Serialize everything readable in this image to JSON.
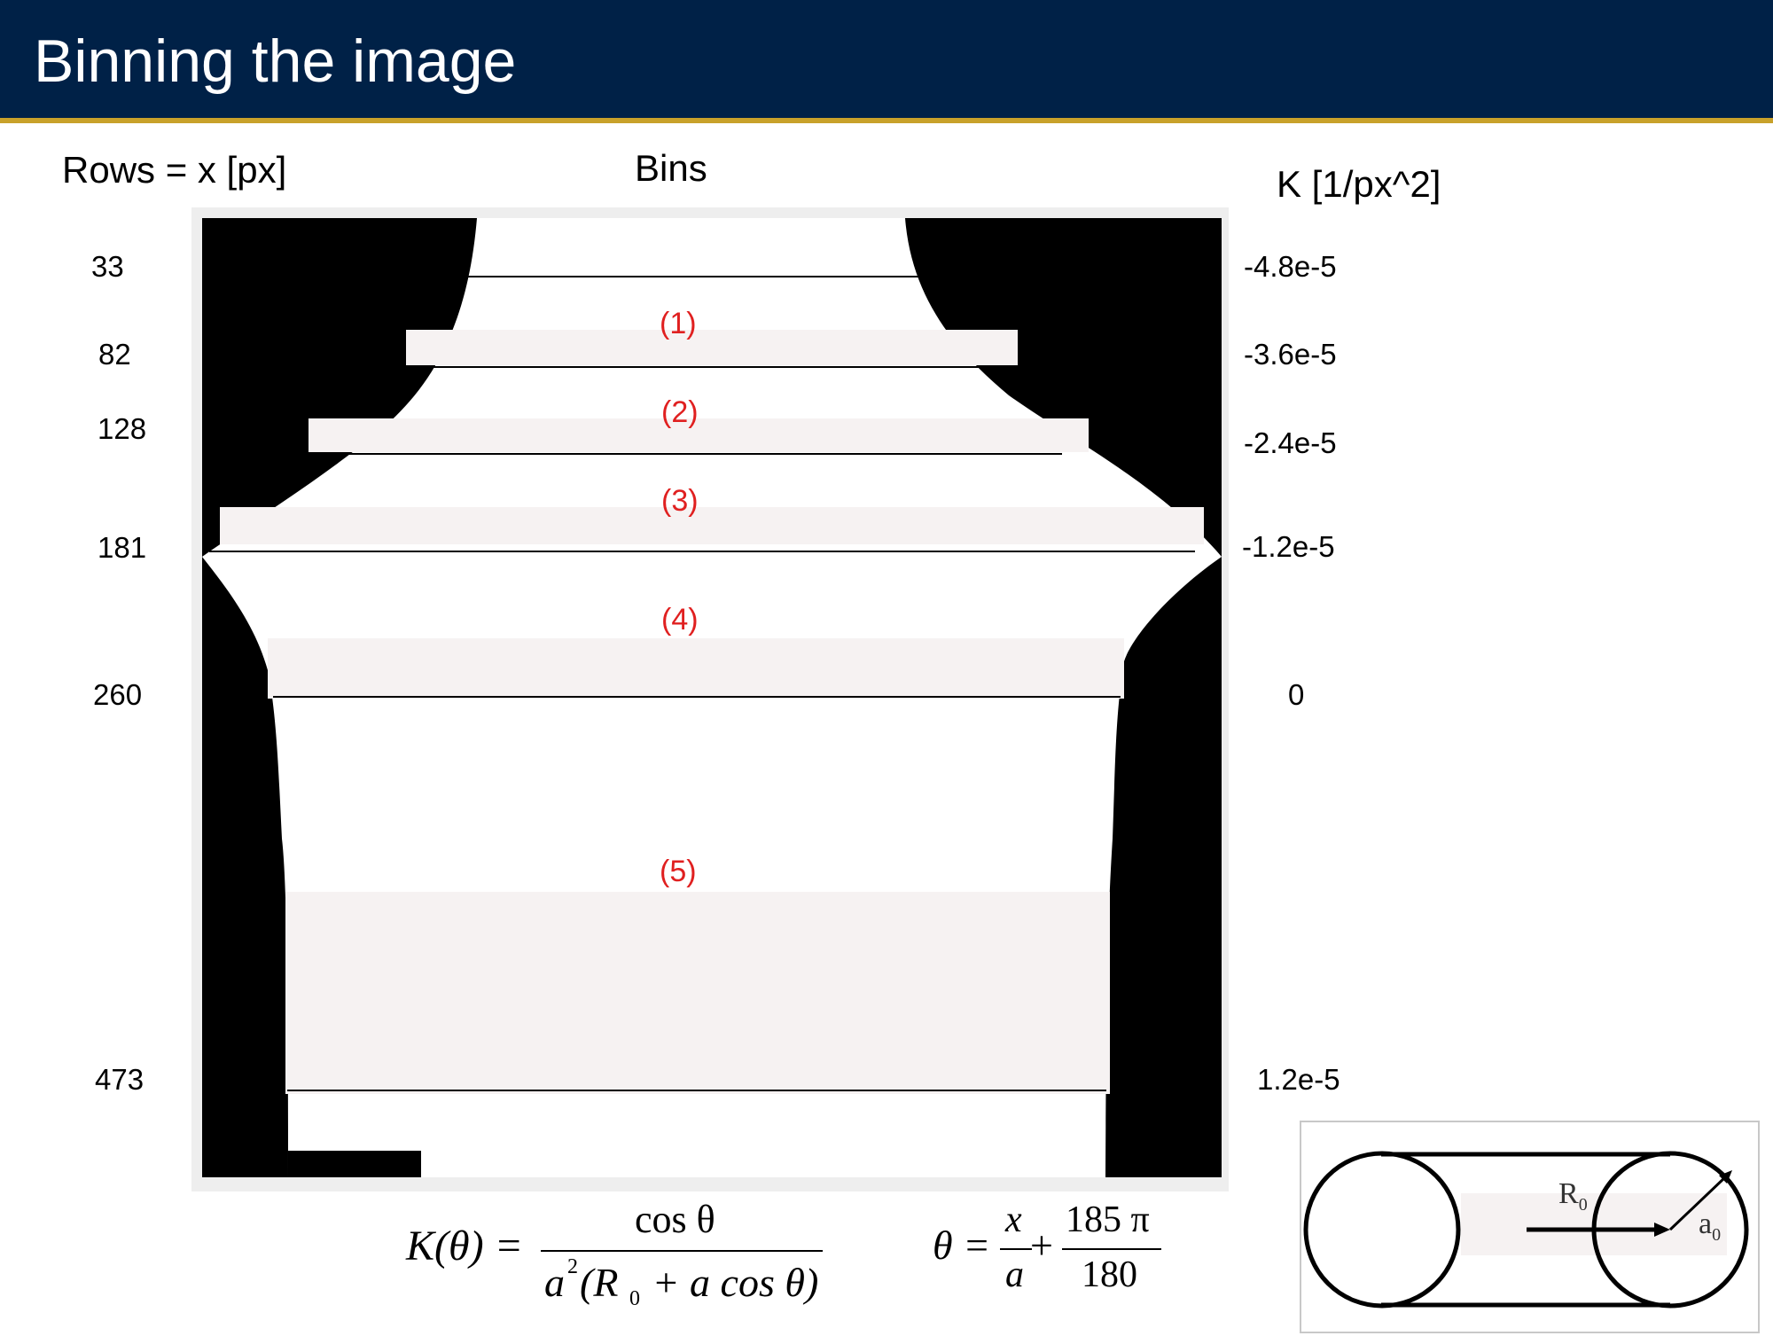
{
  "slide": {
    "title": "Binning the image"
  },
  "headers": {
    "rows": "Rows = x [px]",
    "bins": "Bins",
    "curvature": "K [1/px^2]"
  },
  "rows": [
    "33",
    "82",
    "128",
    "181",
    "260",
    "473"
  ],
  "curvatures": [
    "-4.8e-5",
    "-3.6e-5",
    "-2.4e-5",
    "-1.2e-5",
    "0",
    "1.2e-5"
  ],
  "bins": [
    "(1)",
    "(2)",
    "(3)",
    "(4)",
    "(5)"
  ],
  "colors": {
    "title_bar": "#002147",
    "accent_rule": "#c8a12a",
    "bin_label": "#e02020"
  },
  "formulas": {
    "curvature": {
      "lhs": "K(θ) =",
      "numerator": "cos θ",
      "denominator_a": "a",
      "denominator_exp": "2",
      "denominator_rest": "(R",
      "denominator_sub": "0",
      "denominator_tail": " + a cos θ)"
    },
    "theta": {
      "lhs": "θ =",
      "frac1_num": "x",
      "frac1_den": "a",
      "plus": "+",
      "frac2_num": "185 π",
      "frac2_den": "180"
    }
  },
  "inset": {
    "radius_label": "R",
    "radius_sub": "0",
    "minor_label": "a",
    "minor_sub": "0"
  }
}
